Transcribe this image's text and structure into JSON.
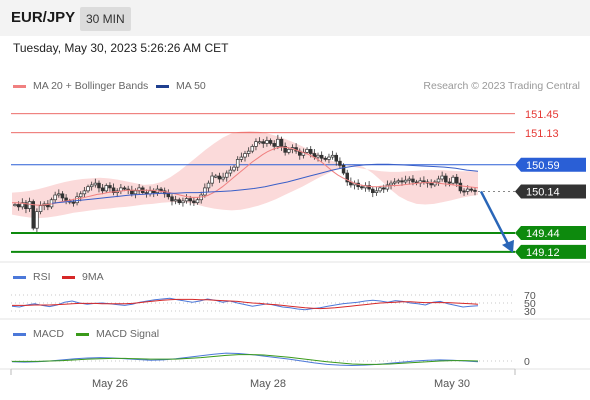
{
  "header": {
    "pair": "EUR/JPY",
    "timeframe": "30 MIN",
    "timestamp": "Tuesday, May 30, 2023 5:26:26 AM CET"
  },
  "legend": {
    "ma20_bb": "MA 20 + Bollinger Bands",
    "ma50": "MA 50",
    "credit": "Research © 2023 Trading Central"
  },
  "rsi_legend": {
    "rsi": "RSI",
    "ma": "9MA"
  },
  "macd_legend": {
    "macd": "MACD",
    "signal": "MACD Signal"
  },
  "colors": {
    "resistance": "#e53935",
    "ma50": "#2a5fd6",
    "support": "#0d8a0d",
    "bollinger": "#fbdada",
    "rsi": "#4c78d9",
    "rsi_ma": "#d62828",
    "macd": "#4c78d9",
    "macd_signal": "#3a9a1a",
    "arrow": "#2a66b8",
    "current": "#333333",
    "candle": "#333333"
  },
  "chart_data": [
    {
      "type": "line",
      "panel": "price",
      "symbol": "EUR/JPY",
      "x_labels": [
        "May 26",
        "May 28",
        "May 30"
      ],
      "ylim": [
        148.95,
        151.75
      ],
      "levels": [
        {
          "role": "resistance",
          "value": 151.45,
          "label": "151.45"
        },
        {
          "role": "resistance",
          "value": 151.13,
          "label": "151.13"
        },
        {
          "role": "ma50",
          "value": 150.59,
          "label": "150.59"
        },
        {
          "role": "current",
          "value": 150.14,
          "label": "150.14"
        },
        {
          "role": "support",
          "value": 149.44,
          "label": "149.44"
        },
        {
          "role": "support",
          "value": 149.12,
          "label": "149.12"
        }
      ],
      "candles_close": [
        149.92,
        149.88,
        149.95,
        149.85,
        149.97,
        149.52,
        149.8,
        149.9,
        149.93,
        149.88,
        150.0,
        150.08,
        150.1,
        150.03,
        149.98,
        149.96,
        149.95,
        150.05,
        150.1,
        150.15,
        150.22,
        150.25,
        150.28,
        150.2,
        150.15,
        150.24,
        150.2,
        150.12,
        150.15,
        150.2,
        150.18,
        150.16,
        150.1,
        150.15,
        150.2,
        150.12,
        150.1,
        150.15,
        150.12,
        150.18,
        150.15,
        150.1,
        150.05,
        149.98,
        150.0,
        149.95,
        149.98,
        150.02,
        149.98,
        149.95,
        150.0,
        150.08,
        150.2,
        150.28,
        150.4,
        150.4,
        150.35,
        150.38,
        150.45,
        150.5,
        150.55,
        150.68,
        150.72,
        150.78,
        150.82,
        150.9,
        150.98,
        150.98,
        150.95,
        151.0,
        150.95,
        150.9,
        151.02,
        150.9,
        150.8,
        150.85,
        150.88,
        150.82,
        150.75,
        150.8,
        150.85,
        150.78,
        150.72,
        150.75,
        150.7,
        150.68,
        150.72,
        150.75,
        150.65,
        150.58,
        150.45,
        150.3,
        150.25,
        150.28,
        150.22,
        150.2,
        150.24,
        150.18,
        150.12,
        150.15,
        150.2,
        150.18,
        150.25,
        150.28,
        150.3,
        150.32,
        150.3,
        150.33,
        150.35,
        150.3,
        150.28,
        150.32,
        150.3,
        150.28,
        150.25,
        150.3,
        150.35,
        150.4,
        150.3,
        150.28,
        150.38,
        150.28,
        150.15,
        150.14,
        150.18,
        150.16,
        150.14
      ],
      "ma20": [
        149.95,
        149.95,
        149.94,
        149.93,
        149.92,
        149.91,
        149.91,
        149.92,
        149.93,
        149.95,
        149.97,
        149.98,
        150.0,
        150.02,
        150.03,
        150.05,
        150.07,
        150.09,
        150.1,
        150.12,
        150.13,
        150.14,
        150.15,
        150.16,
        150.16,
        150.16,
        150.16,
        150.16,
        150.16,
        150.15,
        150.14,
        150.13,
        150.11,
        150.09,
        150.07,
        150.05,
        150.04,
        150.04,
        150.05,
        150.07,
        150.11,
        150.16,
        150.22,
        150.29,
        150.36,
        150.43,
        150.5,
        150.57,
        150.64,
        150.7,
        150.76,
        150.81,
        150.85,
        150.88,
        150.89,
        150.88,
        150.86,
        150.83,
        150.8,
        150.77,
        150.73,
        150.68,
        150.62,
        150.55,
        150.48,
        150.42,
        150.37,
        150.33,
        150.29,
        150.26,
        150.24,
        150.23,
        150.22,
        150.22,
        150.23,
        150.23,
        150.24,
        150.24,
        150.25,
        150.26,
        150.27,
        150.28,
        150.29,
        150.29,
        150.29,
        150.28,
        150.27,
        150.26,
        150.25,
        150.24,
        150.23,
        150.22,
        150.21,
        150.2
      ],
      "bb_upper": [
        150.12,
        150.13,
        150.15,
        150.18,
        150.22,
        150.26,
        150.3,
        150.33,
        150.35,
        150.36,
        150.37,
        150.36,
        150.34,
        150.31,
        150.28,
        150.25,
        150.26,
        150.3,
        150.38,
        150.48,
        150.6,
        150.72,
        150.84,
        150.95,
        151.05,
        151.12,
        151.15,
        151.16,
        151.15,
        151.12,
        151.08,
        151.03,
        150.97,
        150.9,
        150.83,
        150.76,
        150.68,
        150.62,
        150.58,
        150.55,
        150.52,
        150.5,
        150.48,
        150.47,
        150.47,
        150.48,
        150.49,
        150.5,
        150.5,
        150.5,
        150.49,
        150.48,
        150.48,
        150.48
      ],
      "bb_lower": [
        149.75,
        149.72,
        149.7,
        149.69,
        149.7,
        149.72,
        149.75,
        149.78,
        149.8,
        149.82,
        149.84,
        149.85,
        149.87,
        149.88,
        149.9,
        149.92,
        149.93,
        149.95,
        149.96,
        149.96,
        149.95,
        149.92,
        149.88,
        149.85,
        149.83,
        149.82,
        149.83,
        149.86,
        149.9,
        149.95,
        150.01,
        150.08,
        150.15,
        150.22,
        150.3,
        150.38,
        150.45,
        150.52,
        150.58,
        150.6,
        150.55,
        150.45,
        150.32,
        150.18,
        150.06,
        149.98,
        149.93,
        149.92,
        149.93,
        149.96,
        149.99,
        150.03,
        150.06,
        150.08
      ],
      "ma50": [
        149.94,
        149.96,
        149.98,
        150.0,
        150.02,
        150.04,
        150.06,
        150.08,
        150.09,
        150.1,
        150.11,
        150.11,
        150.12,
        150.12,
        150.13,
        150.14,
        150.15,
        150.17,
        150.19,
        150.22,
        150.26,
        150.3,
        150.35,
        150.4,
        150.45,
        150.5,
        150.54,
        150.57,
        150.59,
        150.6,
        150.6,
        150.59,
        150.58,
        150.57,
        150.56,
        150.55,
        150.53,
        150.5,
        150.48
      ]
    },
    {
      "type": "line",
      "panel": "rsi",
      "levels": [
        70,
        50,
        30
      ],
      "ylim": [
        15,
        85
      ],
      "series": [
        {
          "name": "RSI",
          "values": [
            42,
            40,
            45,
            48,
            44,
            41,
            45,
            52,
            55,
            50,
            47,
            49,
            50,
            48,
            46,
            44,
            47,
            52,
            55,
            58,
            60,
            62,
            58,
            55,
            52,
            55,
            60,
            57,
            52,
            55,
            50,
            46,
            42,
            45,
            48,
            44,
            40,
            38,
            35,
            33,
            36,
            38,
            42,
            45,
            48,
            50,
            52,
            55,
            57,
            55,
            52,
            56,
            54,
            50,
            48,
            45,
            52,
            54,
            48,
            44,
            40,
            42,
            43
          ]
        },
        {
          "name": "9MA",
          "values": [
            44,
            44,
            44,
            45,
            45,
            45,
            46,
            47,
            48,
            49,
            49,
            49,
            48,
            48,
            48,
            48,
            49,
            51,
            53,
            55,
            57,
            58,
            59,
            59,
            59,
            58,
            58,
            57,
            56,
            55,
            54,
            52,
            50,
            49,
            47,
            46,
            44,
            42,
            40,
            38,
            37,
            36,
            37,
            38,
            40,
            42,
            44,
            46,
            48,
            50,
            51,
            52,
            53,
            53,
            52,
            51,
            51,
            51,
            51,
            50,
            49,
            48,
            47
          ]
        }
      ]
    },
    {
      "type": "line",
      "panel": "macd",
      "levels": [
        0
      ],
      "ylim": [
        -0.4,
        0.4
      ],
      "series": [
        {
          "name": "MACD",
          "values": [
            -0.02,
            -0.03,
            -0.02,
            0.0,
            0.03,
            0.06,
            0.08,
            0.09,
            0.08,
            0.06,
            0.04,
            0.02,
            0.03,
            0.06,
            0.1,
            0.14,
            0.18,
            0.21,
            0.2,
            0.17,
            0.13,
            0.09,
            0.05,
            0.0,
            -0.05,
            -0.09,
            -0.11,
            -0.12,
            -0.11,
            -0.09,
            -0.06,
            -0.03,
            0.0,
            0.02,
            0.03,
            0.02,
            0.0,
            -0.02
          ]
        },
        {
          "name": "MACD Signal",
          "values": [
            -0.01,
            -0.01,
            -0.01,
            0.0,
            0.01,
            0.03,
            0.05,
            0.06,
            0.07,
            0.07,
            0.06,
            0.05,
            0.05,
            0.05,
            0.07,
            0.09,
            0.12,
            0.15,
            0.17,
            0.17,
            0.16,
            0.13,
            0.1,
            0.06,
            0.02,
            -0.02,
            -0.05,
            -0.08,
            -0.09,
            -0.09,
            -0.08,
            -0.06,
            -0.04,
            -0.02,
            0.0,
            0.01,
            0.01,
            0.0
          ]
        }
      ]
    }
  ]
}
